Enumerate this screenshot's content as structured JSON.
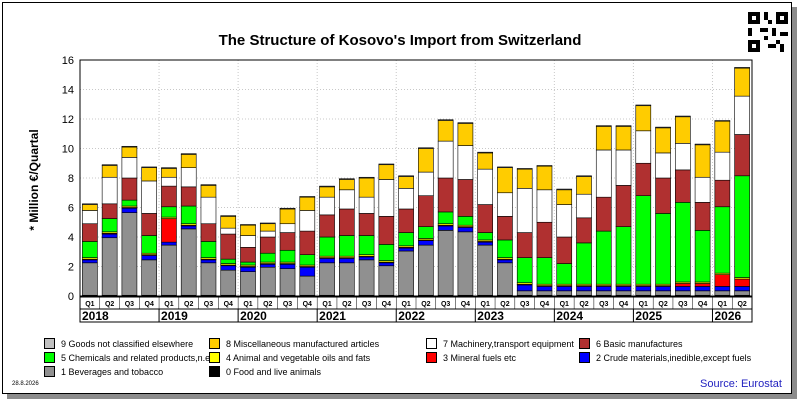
{
  "chart_data": {
    "type": "stacked-bar",
    "title": "The Structure of Kosovo's Import from Switzerland",
    "ylabel": "* Million €/Quartal",
    "ylim": [
      0,
      16
    ],
    "yticks": [
      0,
      2,
      4,
      6,
      8,
      10,
      12,
      14,
      16
    ],
    "grid": true,
    "quarter_labels": [
      "Q1",
      "Q2",
      "Q3",
      "Q4",
      "Q1",
      "Q2",
      "Q3",
      "Q4",
      "Q1",
      "Q2",
      "Q3",
      "Q4",
      "Q1",
      "Q2",
      "Q3",
      "Q4",
      "Q1",
      "Q2",
      "Q3",
      "Q4",
      "Q1",
      "Q2",
      "Q3",
      "Q4",
      "Q1",
      "Q2",
      "Q3",
      "Q4",
      "Q1",
      "Q2",
      "Q3",
      "Q4",
      "Q1",
      "Q2"
    ],
    "years": [
      "2018",
      "2019",
      "2020",
      "2021",
      "2022",
      "2023",
      "2024",
      "2025",
      "2026"
    ],
    "colors": {
      "s0": "#000000",
      "s1": "#909090",
      "s2": "#0000ff",
      "s3": "#ff0000",
      "s4": "#ffff00",
      "s5": "#00ff00",
      "s6": "#b03030",
      "s7": "#ffffff",
      "s8": "#ffcc00",
      "s9": "#c0c0c0"
    },
    "series": [
      {
        "key": "s0",
        "name": "0 Food and live animals",
        "values": [
          0.05,
          0.05,
          0.05,
          0.05,
          0.05,
          0.05,
          0.05,
          0.05,
          0.05,
          0.05,
          0.05,
          0.05,
          0.05,
          0.05,
          0.05,
          0.05,
          0.05,
          0.05,
          0.05,
          0.05,
          0.05,
          0.05,
          0.05,
          0.05,
          0.05,
          0.05,
          0.05,
          0.05,
          0.05,
          0.05,
          0.05,
          0.05,
          0.05,
          0.05
        ]
      },
      {
        "key": "s1",
        "name": "1 Beverages and tobacco",
        "values": [
          2.2,
          3.9,
          5.6,
          2.4,
          3.4,
          4.5,
          2.2,
          1.7,
          1.6,
          1.9,
          1.8,
          1.3,
          2.2,
          2.2,
          2.4,
          2.0,
          3.0,
          3.4,
          4.4,
          4.3,
          3.4,
          2.2,
          0.3,
          0.3,
          0.3,
          0.3,
          0.3,
          0.3,
          0.3,
          0.3,
          0.3,
          0.3,
          0.3,
          0.3
        ]
      },
      {
        "key": "s2",
        "name": "2 Crude materials,inedible,except fuels",
        "values": [
          0.2,
          0.25,
          0.3,
          0.3,
          0.2,
          0.2,
          0.2,
          0.3,
          0.3,
          0.2,
          0.3,
          0.6,
          0.3,
          0.3,
          0.2,
          0.2,
          0.2,
          0.3,
          0.3,
          0.3,
          0.2,
          0.2,
          0.4,
          0.3,
          0.3,
          0.3,
          0.3,
          0.3,
          0.3,
          0.3,
          0.3,
          0.3,
          0.3,
          0.3
        ]
      },
      {
        "key": "s3",
        "name": "3 Mineral fuels etc",
        "values": [
          0.05,
          0.05,
          0.05,
          0.05,
          1.6,
          0.05,
          0.05,
          0.05,
          0.05,
          0.05,
          0.05,
          0.05,
          0.05,
          0.05,
          0.05,
          0.05,
          0.05,
          0.05,
          0.05,
          0.05,
          0.05,
          0.05,
          0.05,
          0.05,
          0.05,
          0.05,
          0.05,
          0.05,
          0.05,
          0.05,
          0.2,
          0.2,
          0.8,
          0.5
        ]
      },
      {
        "key": "s4",
        "name": "4 Animal and vegetable oils and fats",
        "values": [
          0.1,
          0.1,
          0.1,
          0.1,
          0.1,
          0.1,
          0.1,
          0.1,
          0.1,
          0.1,
          0.1,
          0.1,
          0.1,
          0.1,
          0.1,
          0.1,
          0.1,
          0.1,
          0.1,
          0.1,
          0.1,
          0.1,
          0.1,
          0.1,
          0.1,
          0.1,
          0.1,
          0.1,
          0.1,
          0.1,
          0.1,
          0.1,
          0.1,
          0.1
        ]
      },
      {
        "key": "s5",
        "name": "5 Chemicals and related products,n.e.s.",
        "values": [
          1.1,
          0.9,
          0.4,
          1.2,
          0.7,
          1.2,
          1.1,
          0.3,
          0.2,
          0.6,
          0.8,
          0.7,
          1.3,
          1.4,
          1.3,
          1.1,
          0.9,
          0.8,
          0.8,
          0.6,
          0.5,
          1.2,
          1.7,
          1.8,
          1.4,
          2.8,
          3.6,
          3.9,
          6.0,
          4.8,
          5.4,
          3.5,
          4.5,
          6.9
        ]
      },
      {
        "key": "s6",
        "name": "6 Basic manufactures",
        "values": [
          1.2,
          1.0,
          1.5,
          1.5,
          1.4,
          1.3,
          1.2,
          1.7,
          1.0,
          1.1,
          1.2,
          1.6,
          1.5,
          1.8,
          1.5,
          1.9,
          1.6,
          2.1,
          2.3,
          2.5,
          1.9,
          1.6,
          1.7,
          2.4,
          1.8,
          1.7,
          2.3,
          2.8,
          2.2,
          2.4,
          2.2,
          1.9,
          1.8,
          2.8
        ]
      },
      {
        "key": "s7",
        "name": "7 Machinery,transport equipment",
        "values": [
          0.9,
          1.8,
          1.4,
          2.2,
          0.6,
          1.3,
          1.8,
          0.4,
          0.8,
          0.4,
          0.6,
          1.4,
          1.2,
          1.3,
          1.1,
          2.5,
          1.4,
          1.6,
          2.5,
          2.3,
          2.4,
          1.6,
          3.0,
          2.2,
          2.2,
          1.6,
          3.2,
          2.4,
          2.2,
          1.7,
          1.8,
          1.7,
          1.9,
          2.6
        ]
      },
      {
        "key": "s8",
        "name": "8 Miscellaneous manufactured articles",
        "values": [
          0.4,
          0.8,
          0.7,
          0.9,
          0.6,
          0.9,
          0.8,
          0.8,
          0.7,
          0.5,
          1.0,
          0.9,
          0.7,
          0.7,
          1.3,
          1.0,
          0.8,
          1.6,
          1.4,
          1.5,
          1.1,
          1.7,
          1.3,
          1.6,
          1.0,
          1.2,
          1.6,
          1.6,
          1.7,
          1.7,
          1.8,
          2.2,
          2.1,
          1.9
        ]
      },
      {
        "key": "s9",
        "name": "9 Goods not classified elsewhere",
        "values": [
          0.05,
          0.05,
          0.05,
          0.05,
          0.05,
          0.05,
          0.05,
          0.05,
          0.05,
          0.05,
          0.05,
          0.05,
          0.05,
          0.05,
          0.05,
          0.05,
          0.05,
          0.05,
          0.05,
          0.05,
          0.05,
          0.05,
          0.05,
          0.05,
          0.05,
          0.05,
          0.05,
          0.05,
          0.05,
          0.05,
          0.05,
          0.05,
          0.05,
          0.05
        ]
      }
    ],
    "legend_order": [
      "s9",
      "s8",
      "s7",
      "s6",
      "s5",
      "s4",
      "s3",
      "s2",
      "s1",
      "s0"
    ]
  },
  "date_label": "28.8.2026",
  "source": "Source: Eurostat"
}
